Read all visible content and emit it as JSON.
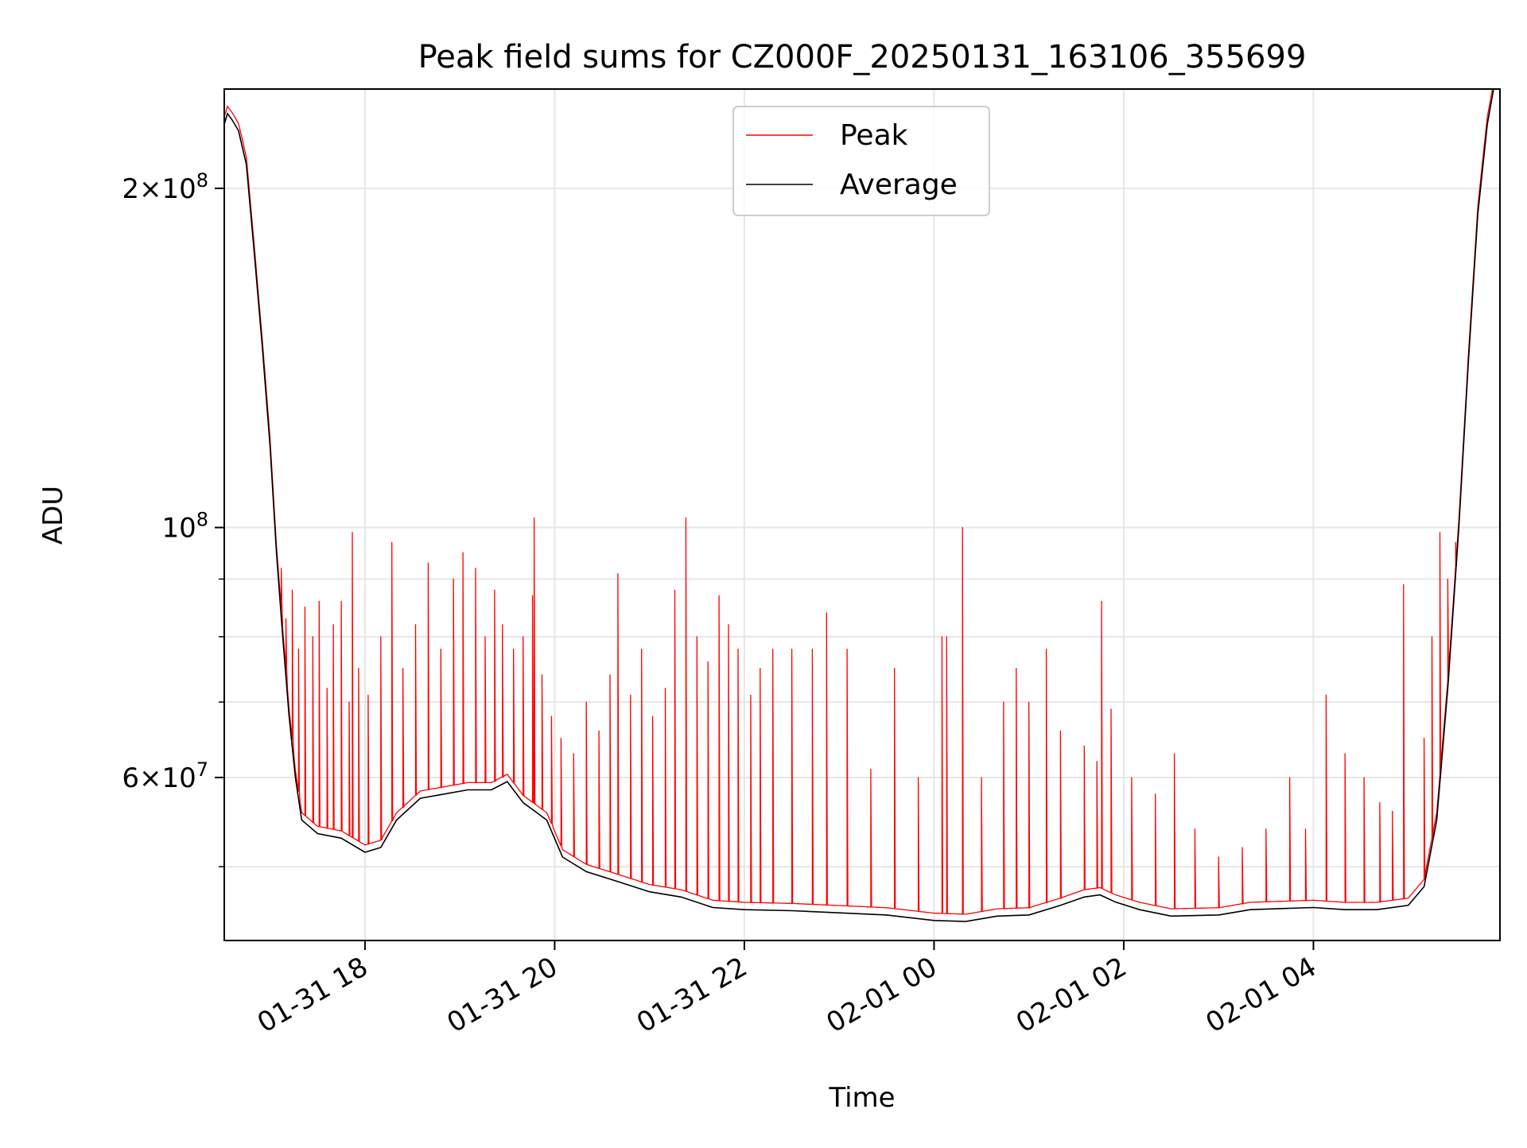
{
  "chart_data": {
    "type": "line",
    "title": "Peak field sums for CZ000F_20250131_163106_355699",
    "xlabel": "Time",
    "ylabel": "ADU",
    "y_scale": "log",
    "ylim": [
      43000000,
      245000000
    ],
    "xlim": [
      "2025-01-31T16:31:00",
      "2025-02-01T05:58:00"
    ],
    "x_ticks": [
      {
        "t": "2025-01-31T18:00:00",
        "label": "01-31 18"
      },
      {
        "t": "2025-01-31T20:00:00",
        "label": "01-31 20"
      },
      {
        "t": "2025-01-31T22:00:00",
        "label": "01-31 22"
      },
      {
        "t": "2025-02-01T00:00:00",
        "label": "02-01 00"
      },
      {
        "t": "2025-02-01T02:00:00",
        "label": "02-01 02"
      },
      {
        "t": "2025-02-01T04:00:00",
        "label": "02-01 04"
      }
    ],
    "y_major_ticks": [
      {
        "v": 60000000,
        "base": "6",
        "exp": "7"
      },
      {
        "v": 100000000,
        "base": "",
        "exp": "8"
      },
      {
        "v": 200000000,
        "base": "2",
        "exp": "8"
      }
    ],
    "y_minor_ticks": [
      50000000,
      70000000,
      80000000,
      90000000
    ],
    "grid": true,
    "legend_position": "top-center",
    "series": [
      {
        "name": "Peak",
        "color": "#ff0000",
        "baseline_ref": "Average",
        "spikes": [
          [
            "2025-01-31T17:07:00",
            92000000
          ],
          [
            "2025-01-31T17:10:00",
            83000000
          ],
          [
            "2025-01-31T17:14:00",
            88000000
          ],
          [
            "2025-01-31T17:18:00",
            78000000
          ],
          [
            "2025-01-31T17:22:00",
            85000000
          ],
          [
            "2025-01-31T17:27:00",
            80000000
          ],
          [
            "2025-01-31T17:31:00",
            86000000
          ],
          [
            "2025-01-31T17:36:00",
            72000000
          ],
          [
            "2025-01-31T17:40:00",
            82000000
          ],
          [
            "2025-01-31T17:45:00",
            86000000
          ],
          [
            "2025-01-31T17:50:00",
            70000000
          ],
          [
            "2025-01-31T17:52:00",
            99000000
          ],
          [
            "2025-01-31T17:56:00",
            75000000
          ],
          [
            "2025-01-31T18:02:00",
            71000000
          ],
          [
            "2025-01-31T18:10:00",
            80000000
          ],
          [
            "2025-01-31T18:17:00",
            97000000
          ],
          [
            "2025-01-31T18:24:00",
            75000000
          ],
          [
            "2025-01-31T18:32:00",
            82000000
          ],
          [
            "2025-01-31T18:40:00",
            93000000
          ],
          [
            "2025-01-31T18:48:00",
            78000000
          ],
          [
            "2025-01-31T18:56:00",
            90000000
          ],
          [
            "2025-01-31T19:02:00",
            95000000
          ],
          [
            "2025-01-31T19:10:00",
            92000000
          ],
          [
            "2025-01-31T19:16:00",
            80000000
          ],
          [
            "2025-01-31T19:22:00",
            88000000
          ],
          [
            "2025-01-31T19:27:00",
            82000000
          ],
          [
            "2025-01-31T19:34:00",
            78000000
          ],
          [
            "2025-01-31T19:40:00",
            80000000
          ],
          [
            "2025-01-31T19:46:00",
            87000000
          ],
          [
            "2025-01-31T19:47:00",
            102000000
          ],
          [
            "2025-01-31T19:52:00",
            74000000
          ],
          [
            "2025-01-31T19:58:00",
            68000000
          ],
          [
            "2025-01-31T20:04:00",
            65000000
          ],
          [
            "2025-01-31T20:12:00",
            63000000
          ],
          [
            "2025-01-31T20:20:00",
            70000000
          ],
          [
            "2025-01-31T20:28:00",
            66000000
          ],
          [
            "2025-01-31T20:35:00",
            74000000
          ],
          [
            "2025-01-31T20:40:00",
            91000000
          ],
          [
            "2025-01-31T20:48:00",
            71000000
          ],
          [
            "2025-01-31T20:55:00",
            78000000
          ],
          [
            "2025-01-31T21:02:00",
            68000000
          ],
          [
            "2025-01-31T21:10:00",
            72000000
          ],
          [
            "2025-01-31T21:16:00",
            88000000
          ],
          [
            "2025-01-31T21:23:00",
            102000000
          ],
          [
            "2025-01-31T21:30:00",
            80000000
          ],
          [
            "2025-01-31T21:37:00",
            76000000
          ],
          [
            "2025-01-31T21:44:00",
            87000000
          ],
          [
            "2025-01-31T21:50:00",
            82000000
          ],
          [
            "2025-01-31T21:56:00",
            78000000
          ],
          [
            "2025-01-31T22:04:00",
            71000000
          ],
          [
            "2025-01-31T22:10:00",
            75000000
          ],
          [
            "2025-01-31T22:18:00",
            78000000
          ],
          [
            "2025-01-31T22:30:00",
            78000000
          ],
          [
            "2025-01-31T22:43:00",
            78000000
          ],
          [
            "2025-01-31T22:52:00",
            84000000
          ],
          [
            "2025-01-31T23:05:00",
            78000000
          ],
          [
            "2025-01-31T23:20:00",
            61000000
          ],
          [
            "2025-01-31T23:35:00",
            75000000
          ],
          [
            "2025-01-31T23:50:00",
            60000000
          ],
          [
            "2025-02-01T00:05:00",
            80000000
          ],
          [
            "2025-02-01T00:08:00",
            80000000
          ],
          [
            "2025-02-01T00:18:00",
            100000000
          ],
          [
            "2025-02-01T00:30:00",
            60000000
          ],
          [
            "2025-02-01T00:44:00",
            70000000
          ],
          [
            "2025-02-01T00:52:00",
            75000000
          ],
          [
            "2025-02-01T01:00:00",
            70000000
          ],
          [
            "2025-02-01T01:11:00",
            78000000
          ],
          [
            "2025-02-01T01:20:00",
            66000000
          ],
          [
            "2025-02-01T01:35:00",
            64000000
          ],
          [
            "2025-02-01T01:43:00",
            62000000
          ],
          [
            "2025-02-01T01:46:00",
            86000000
          ],
          [
            "2025-02-01T01:52:00",
            69000000
          ],
          [
            "2025-02-01T02:05:00",
            60000000
          ],
          [
            "2025-02-01T02:20:00",
            58000000
          ],
          [
            "2025-02-01T02:32:00",
            63000000
          ],
          [
            "2025-02-01T02:45:00",
            54000000
          ],
          [
            "2025-02-01T03:00:00",
            51000000
          ],
          [
            "2025-02-01T03:15:00",
            52000000
          ],
          [
            "2025-02-01T03:30:00",
            54000000
          ],
          [
            "2025-02-01T03:45:00",
            60000000
          ],
          [
            "2025-02-01T03:55:00",
            54000000
          ],
          [
            "2025-02-01T04:08:00",
            71000000
          ],
          [
            "2025-02-01T04:20:00",
            63000000
          ],
          [
            "2025-02-01T04:32:00",
            60000000
          ],
          [
            "2025-02-01T04:42:00",
            57000000
          ],
          [
            "2025-02-01T04:50:00",
            56000000
          ],
          [
            "2025-02-01T04:57:00",
            89000000
          ],
          [
            "2025-02-01T05:10:00",
            65000000
          ],
          [
            "2025-02-01T05:15:00",
            80000000
          ],
          [
            "2025-02-01T05:20:00",
            99000000
          ],
          [
            "2025-02-01T05:25:00",
            90000000
          ],
          [
            "2025-02-01T05:30:00",
            97000000
          ]
        ]
      },
      {
        "name": "Average",
        "color": "#000000",
        "points": [
          [
            "2025-01-31T16:31:00",
            228000000
          ],
          [
            "2025-01-31T16:33:00",
            233000000
          ],
          [
            "2025-01-31T16:36:00",
            230000000
          ],
          [
            "2025-01-31T16:40:00",
            225000000
          ],
          [
            "2025-01-31T16:45:00",
            210000000
          ],
          [
            "2025-01-31T16:50:00",
            175000000
          ],
          [
            "2025-01-31T16:55:00",
            145000000
          ],
          [
            "2025-01-31T17:00:00",
            118000000
          ],
          [
            "2025-01-31T17:04:00",
            95000000
          ],
          [
            "2025-01-31T17:08:00",
            80000000
          ],
          [
            "2025-01-31T17:12:00",
            68000000
          ],
          [
            "2025-01-31T17:16:00",
            60000000
          ],
          [
            "2025-01-31T17:20:00",
            55000000
          ],
          [
            "2025-01-31T17:30:00",
            53500000
          ],
          [
            "2025-01-31T17:45:00",
            53000000
          ],
          [
            "2025-01-31T18:00:00",
            51500000
          ],
          [
            "2025-01-31T18:10:00",
            52000000
          ],
          [
            "2025-01-31T18:20:00",
            55000000
          ],
          [
            "2025-01-31T18:35:00",
            57500000
          ],
          [
            "2025-01-31T18:50:00",
            58000000
          ],
          [
            "2025-01-31T19:05:00",
            58500000
          ],
          [
            "2025-01-31T19:20:00",
            58500000
          ],
          [
            "2025-01-31T19:30:00",
            59500000
          ],
          [
            "2025-01-31T19:40:00",
            57000000
          ],
          [
            "2025-01-31T19:55:00",
            55000000
          ],
          [
            "2025-01-31T20:05:00",
            51000000
          ],
          [
            "2025-01-31T20:20:00",
            49500000
          ],
          [
            "2025-01-31T20:40:00",
            48500000
          ],
          [
            "2025-01-31T21:00:00",
            47500000
          ],
          [
            "2025-01-31T21:20:00",
            47000000
          ],
          [
            "2025-01-31T21:40:00",
            46000000
          ],
          [
            "2025-01-31T22:00:00",
            45800000
          ],
          [
            "2025-01-31T22:30:00",
            45700000
          ],
          [
            "2025-01-31T23:00:00",
            45500000
          ],
          [
            "2025-01-31T23:30:00",
            45300000
          ],
          [
            "2025-02-01T00:00:00",
            44800000
          ],
          [
            "2025-02-01T00:20:00",
            44700000
          ],
          [
            "2025-02-01T00:40:00",
            45200000
          ],
          [
            "2025-02-01T01:00:00",
            45300000
          ],
          [
            "2025-02-01T01:20:00",
            46200000
          ],
          [
            "2025-02-01T01:35:00",
            47000000
          ],
          [
            "2025-02-01T01:45:00",
            47200000
          ],
          [
            "2025-02-01T01:55:00",
            46500000
          ],
          [
            "2025-02-01T02:10:00",
            45800000
          ],
          [
            "2025-02-01T02:30:00",
            45200000
          ],
          [
            "2025-02-01T03:00:00",
            45300000
          ],
          [
            "2025-02-01T03:20:00",
            45800000
          ],
          [
            "2025-02-01T03:40:00",
            45900000
          ],
          [
            "2025-02-01T04:00:00",
            46000000
          ],
          [
            "2025-02-01T04:20:00",
            45800000
          ],
          [
            "2025-02-01T04:40:00",
            45800000
          ],
          [
            "2025-02-01T05:00:00",
            46200000
          ],
          [
            "2025-02-01T05:10:00",
            48000000
          ],
          [
            "2025-02-01T05:18:00",
            55000000
          ],
          [
            "2025-02-01T05:25:00",
            72000000
          ],
          [
            "2025-02-01T05:32:00",
            100000000
          ],
          [
            "2025-02-01T05:38:00",
            140000000
          ],
          [
            "2025-02-01T05:44:00",
            190000000
          ],
          [
            "2025-02-01T05:50:00",
            228000000
          ],
          [
            "2025-02-01T05:54:00",
            245000000
          ]
        ]
      }
    ]
  }
}
